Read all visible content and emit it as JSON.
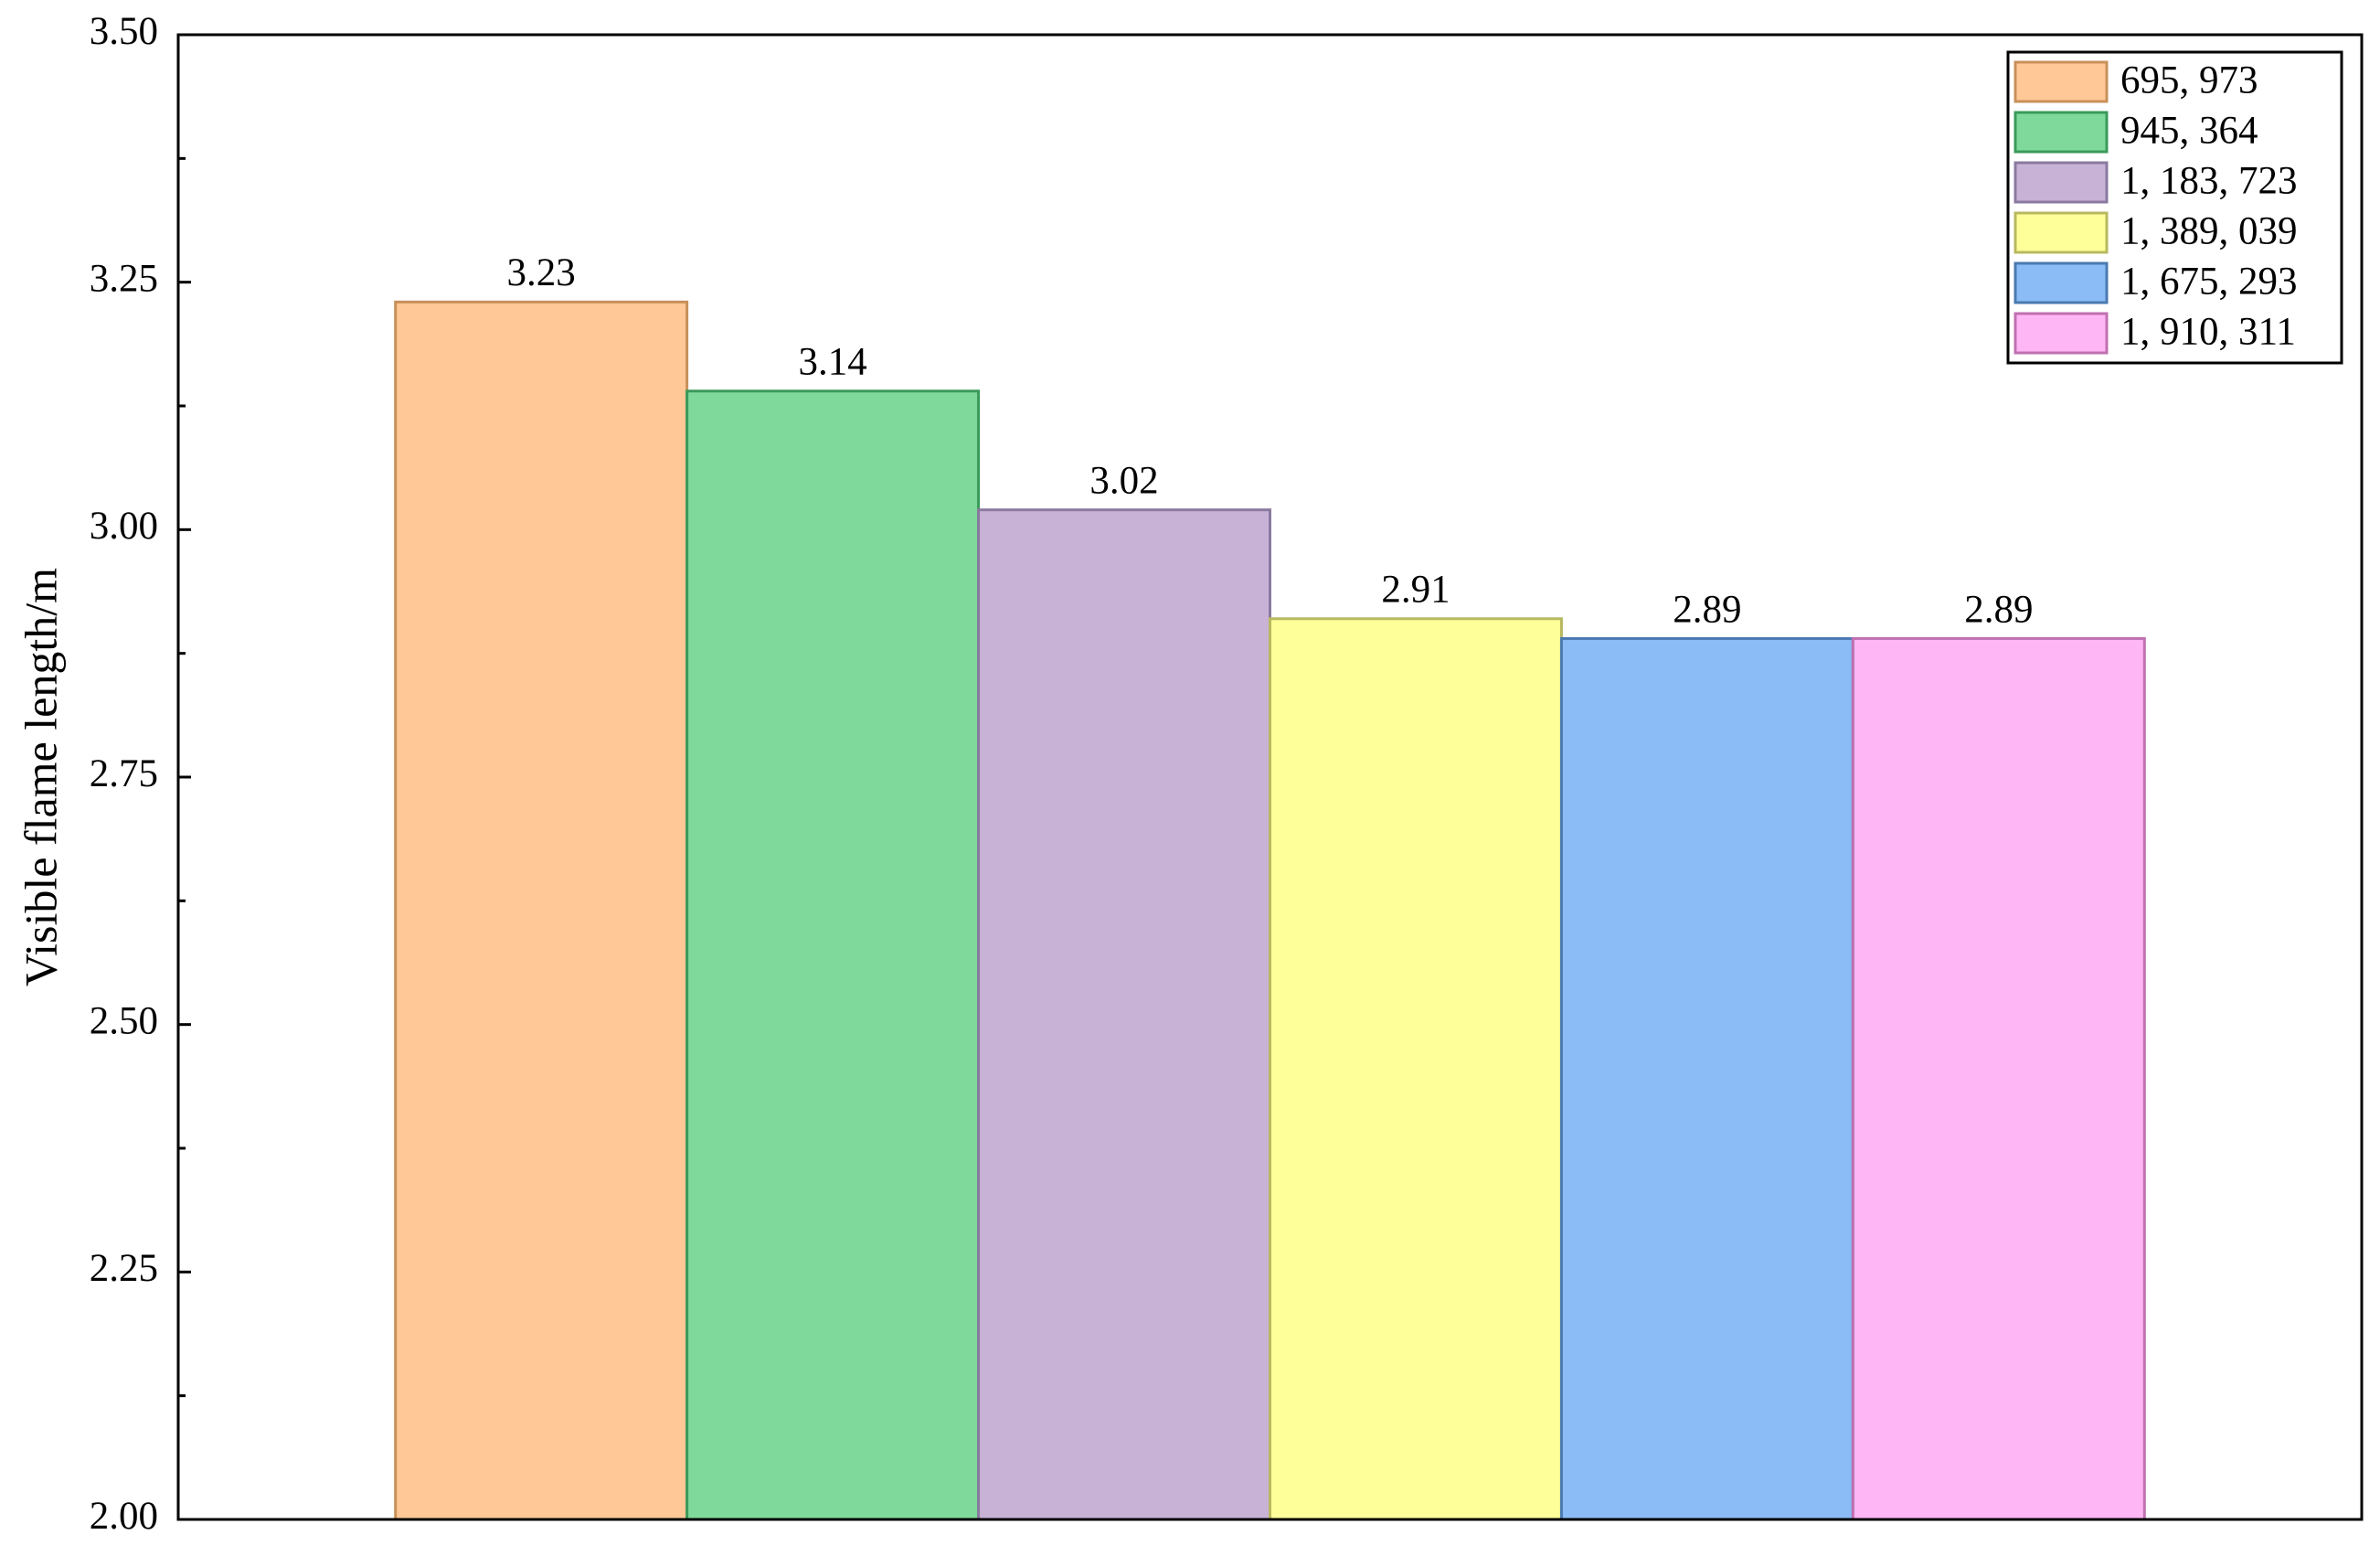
{
  "chart_data": {
    "type": "bar",
    "y_label": "Visible flame length/m",
    "categories": [
      null
    ],
    "series": [
      {
        "name": "695, 973",
        "color": "#ffc896",
        "edgecolor": "#c8905a",
        "values": [
          3.23
        ]
      },
      {
        "name": "945, 364",
        "color": "#7fd99a",
        "edgecolor": "#3a9a5a",
        "values": [
          3.14
        ]
      },
      {
        "name": "1, 183, 723",
        "color": "#c8b2d6",
        "edgecolor": "#8a7aa0",
        "values": [
          3.02
        ]
      },
      {
        "name": "1, 389, 039",
        "color": "#ffff99",
        "edgecolor": "#b8b860",
        "values": [
          2.91
        ]
      },
      {
        "name": "1, 675, 293",
        "color": "#8cbcf5",
        "edgecolor": "#4a7ab0",
        "values": [
          2.89
        ]
      },
      {
        "name": "1, 910, 311",
        "color": "#ffb6f5",
        "edgecolor": "#c070b0",
        "values": [
          2.89
        ]
      }
    ],
    "ylim": [
      2.0,
      3.5
    ],
    "yticks": [
      {
        "value": 2.0,
        "label": "2.00"
      },
      2.25,
      {
        "value": 2.5,
        "label": "2.50"
      },
      2.75,
      {
        "value": 3.0,
        "label": "3.00"
      },
      3.25,
      {
        "value": 3.5,
        "label": "3.50"
      }
    ],
    "grid": false,
    "legend": "upper right",
    "data_labels": true
  }
}
